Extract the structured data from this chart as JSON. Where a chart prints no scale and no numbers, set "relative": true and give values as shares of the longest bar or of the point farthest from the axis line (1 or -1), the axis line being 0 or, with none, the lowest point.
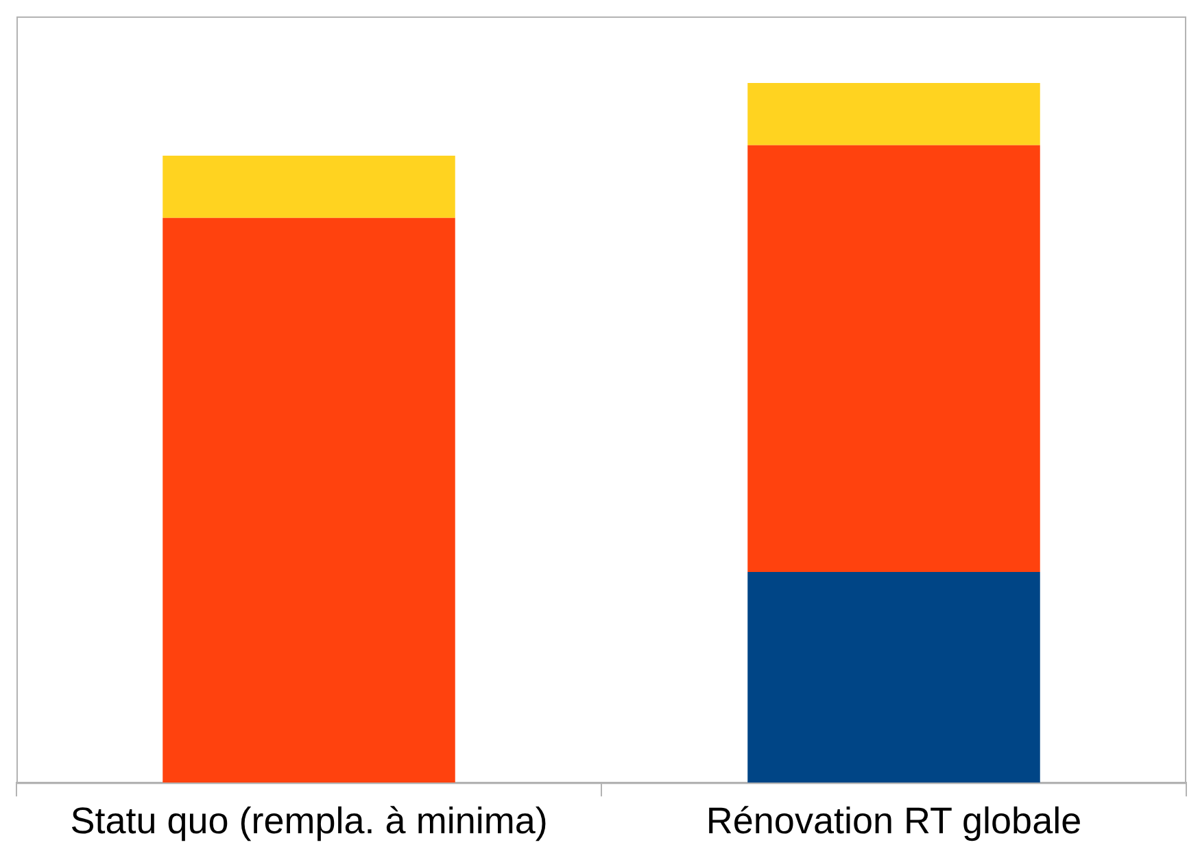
{
  "chart_data": {
    "type": "bar",
    "stacked": true,
    "relative": true,
    "categories": [
      "Statu quo (rempla. à minima)",
      "Rénovation RT globale"
    ],
    "series": [
      {
        "color": "#004586",
        "values": [
          0,
          0.301
        ]
      },
      {
        "color": "#ff420e",
        "values": [
          0.807,
          0.61
        ]
      },
      {
        "color": "#ffd320",
        "values": [
          0.089,
          0.089
        ]
      }
    ]
  }
}
